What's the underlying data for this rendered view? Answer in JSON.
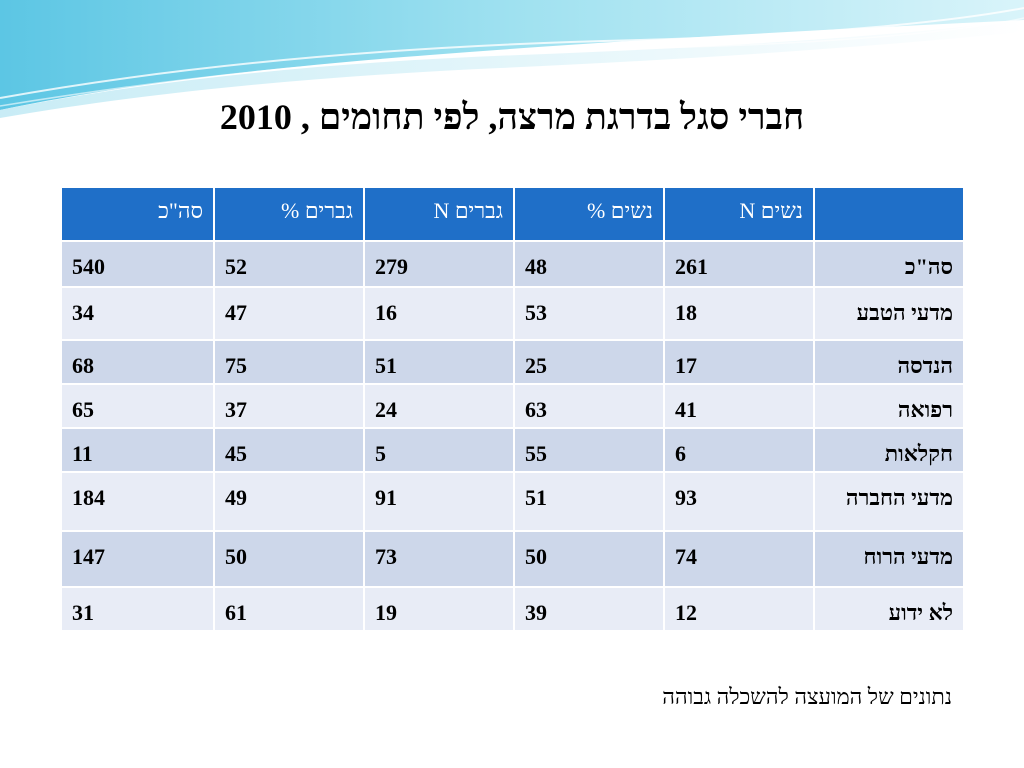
{
  "title": "חברי סגל בדרגת מרצה, לפי תחומים , 2010",
  "table": {
    "headers": [
      "",
      "נשים N",
      "נשים %",
      "גברים N",
      "גברים %",
      "סה\"כ"
    ],
    "rows": [
      {
        "label": "סה\"כ",
        "values": [
          "261",
          "48",
          "279",
          "52",
          "540"
        ]
      },
      {
        "label": "מדעי הטבע",
        "values": [
          "18",
          "53",
          "16",
          "47",
          "34"
        ]
      },
      {
        "label": "הנדסה",
        "values": [
          "17",
          "25",
          "51",
          "75",
          "68"
        ]
      },
      {
        "label": "רפואה",
        "values": [
          "41",
          "63",
          "24",
          "37",
          "65"
        ]
      },
      {
        "label": "חקלאות",
        "values": [
          "6",
          "55",
          "5",
          "45",
          "11"
        ]
      },
      {
        "label": "מדעי החברה",
        "values": [
          "93",
          "51",
          "91",
          "49",
          "184"
        ]
      },
      {
        "label": "מדעי הרוח",
        "values": [
          "74",
          "50",
          "73",
          "50",
          "147"
        ]
      },
      {
        "label": "לא ידוע",
        "values": [
          "12",
          "39",
          "19",
          "61",
          "31"
        ]
      }
    ]
  },
  "footer": "נתונים של המועצה להשכלה גבוהה",
  "colors": {
    "header": "#1f6fc8",
    "row_dark": "#cdd7ea",
    "row_light": "#e8ecf6",
    "wave": "#7fd3e8"
  }
}
